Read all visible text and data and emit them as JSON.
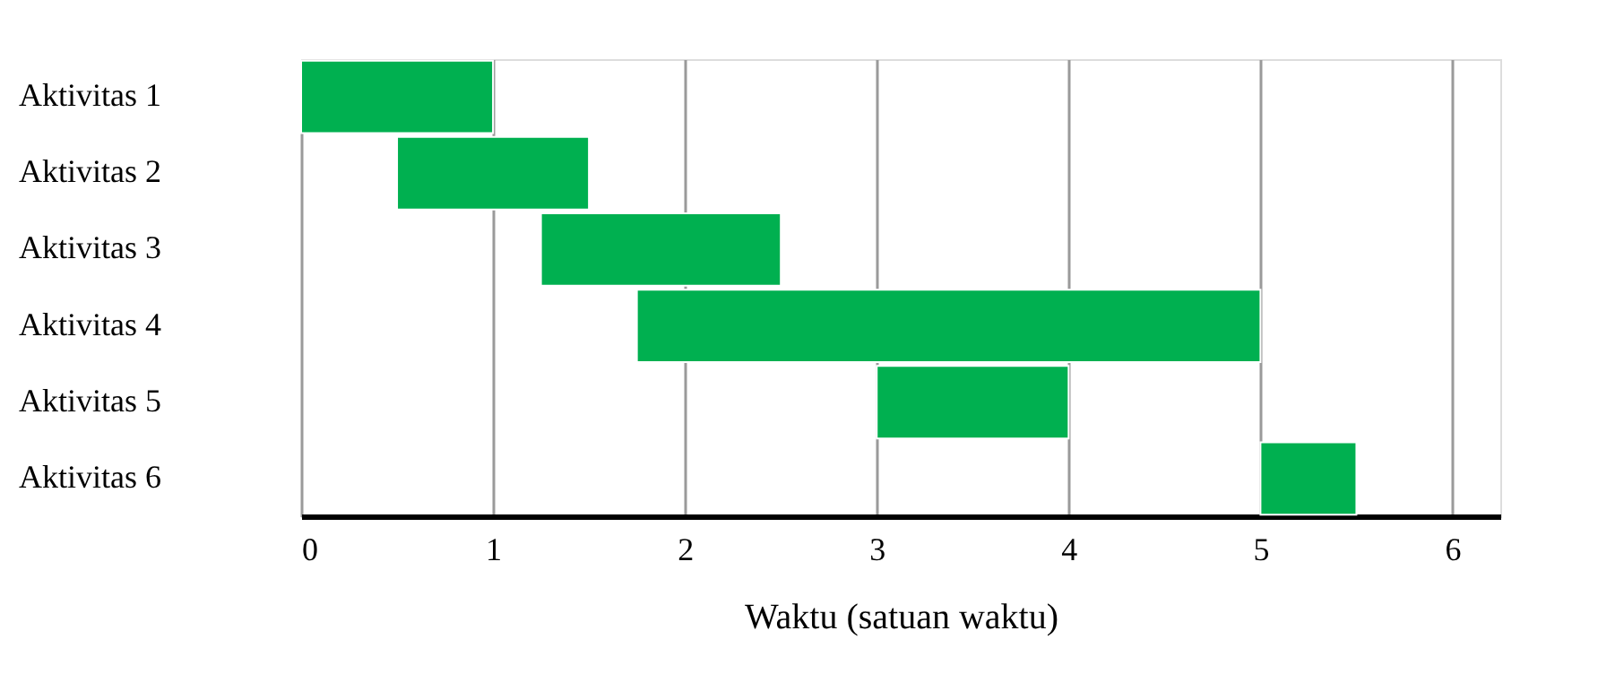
{
  "chart_data": {
    "type": "bar",
    "orientation": "horizontal",
    "categories": [
      "Aktivitas 1",
      "Aktivitas 2",
      "Aktivitas 3",
      "Aktivitas 4",
      "Aktivitas 5",
      "Aktivitas 6"
    ],
    "base": [
      0,
      0.5,
      1.25,
      1.75,
      3,
      5
    ],
    "values": [
      1,
      1,
      1.25,
      3.25,
      1,
      0.5
    ],
    "color": "#00b050",
    "xlabel": "Waktu (satuan waktu)",
    "xlim": [
      0,
      6.25
    ],
    "xticks": [
      0,
      1,
      2,
      3,
      4,
      5,
      6
    ],
    "grid": "x"
  }
}
